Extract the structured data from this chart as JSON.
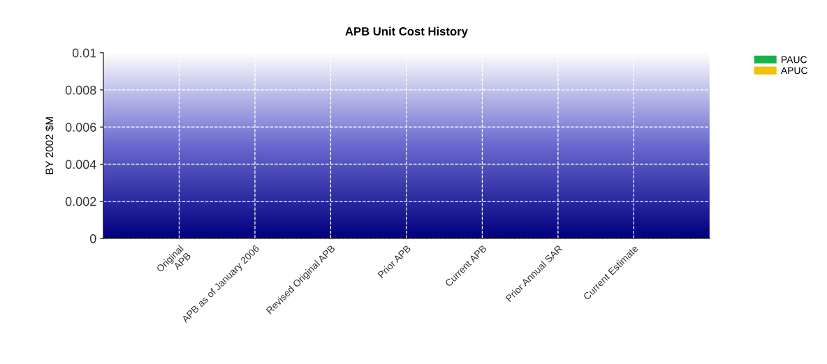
{
  "chart_data": {
    "type": "bar",
    "title": "APB Unit Cost History",
    "ylabel": "BY 2002 $M",
    "categories": [
      "Original\nAPB",
      "APB as of January 2006",
      "Revised Original APB",
      "Prior APB",
      "Current APB",
      "Prior Annual SAR",
      "Current Estimate"
    ],
    "series": [
      {
        "name": "PAUC",
        "color": "#1db04a",
        "values": [
          0,
          0,
          0,
          0,
          0,
          0,
          0
        ]
      },
      {
        "name": "APUC",
        "color": "#f5c000",
        "values": [
          0,
          0,
          0,
          0,
          0,
          0,
          0
        ]
      }
    ],
    "ylim": [
      0,
      0.01
    ],
    "yticks": [
      0,
      0.002,
      0.004,
      0.006,
      0.008,
      0.01
    ],
    "grid": true,
    "line_style": "dashed",
    "legend": "top right"
  }
}
